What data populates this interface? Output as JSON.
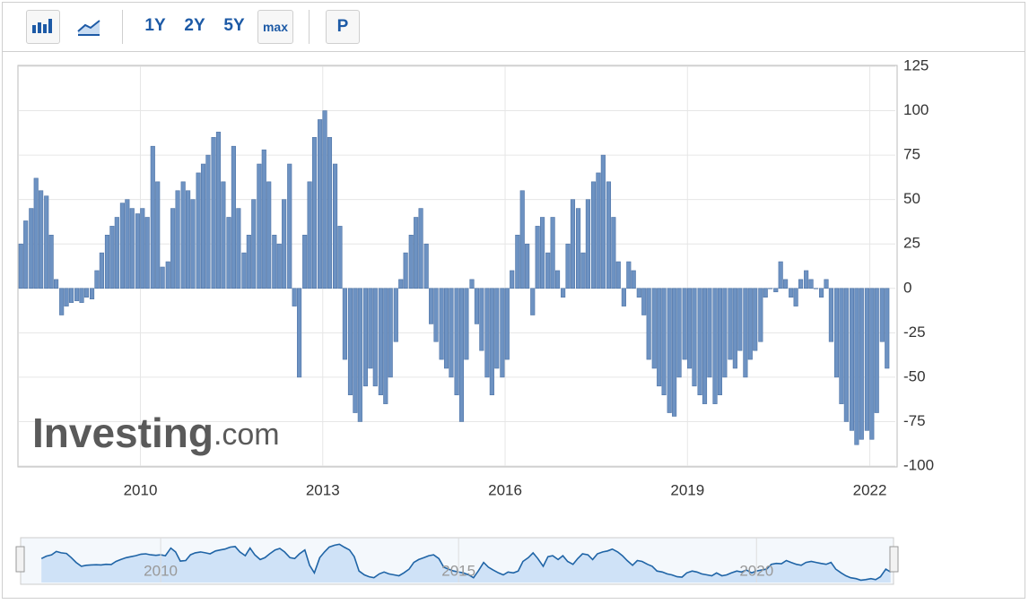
{
  "toolbar": {
    "buttons": [
      "1Y",
      "2Y",
      "5Y",
      "max",
      "P"
    ]
  },
  "watermark": {
    "brand": "Investing",
    "suffix": ".com"
  },
  "chart_data": {
    "type": "bar",
    "color": "#6d92c2",
    "x": [
      2008,
      2008.08,
      2008.17,
      2008.25,
      2008.33,
      2008.42,
      2008.5,
      2008.58,
      2008.67,
      2008.75,
      2008.83,
      2008.92,
      2009,
      2009.08,
      2009.17,
      2009.25,
      2009.33,
      2009.42,
      2009.5,
      2009.58,
      2009.67,
      2009.75,
      2009.83,
      2009.92,
      2010,
      2010.08,
      2010.17,
      2010.25,
      2010.33,
      2010.42,
      2010.5,
      2010.58,
      2010.67,
      2010.75,
      2010.83,
      2010.92,
      2011,
      2011.08,
      2011.17,
      2011.25,
      2011.33,
      2011.42,
      2011.5,
      2011.58,
      2011.67,
      2011.75,
      2011.83,
      2011.92,
      2012,
      2012.08,
      2012.17,
      2012.25,
      2012.33,
      2012.42,
      2012.5,
      2012.58,
      2012.67,
      2012.75,
      2012.83,
      2012.92,
      2013,
      2013.08,
      2013.17,
      2013.25,
      2013.33,
      2013.42,
      2013.5,
      2013.58,
      2013.67,
      2013.75,
      2013.83,
      2013.92,
      2014,
      2014.08,
      2014.17,
      2014.25,
      2014.33,
      2014.42,
      2014.5,
      2014.58,
      2014.67,
      2014.75,
      2014.83,
      2014.92,
      2015,
      2015.08,
      2015.17,
      2015.25,
      2015.33,
      2015.42,
      2015.5,
      2015.58,
      2015.67,
      2015.75,
      2015.83,
      2015.92,
      2016,
      2016.08,
      2016.17,
      2016.25,
      2016.33,
      2016.42,
      2016.5,
      2016.58,
      2016.67,
      2016.75,
      2016.83,
      2016.92,
      2017,
      2017.08,
      2017.17,
      2017.25,
      2017.33,
      2017.42,
      2017.5,
      2017.58,
      2017.67,
      2017.75,
      2017.83,
      2017.92,
      2018,
      2018.08,
      2018.17,
      2018.25,
      2018.33,
      2018.42,
      2018.5,
      2018.58,
      2018.67,
      2018.75,
      2018.83,
      2018.92,
      2019,
      2019.08,
      2019.17,
      2019.25,
      2019.33,
      2019.42,
      2019.5,
      2019.58,
      2019.67,
      2019.75,
      2019.83,
      2019.92,
      2020,
      2020.08,
      2020.17,
      2020.25,
      2020.33,
      2020.42,
      2020.5,
      2020.58,
      2020.67,
      2020.75,
      2020.83,
      2020.92,
      2021,
      2021.08,
      2021.17,
      2021.25,
      2021.33,
      2021.42,
      2021.5,
      2021.58,
      2021.67,
      2021.75,
      2021.83,
      2021.92,
      2022,
      2022.08,
      2022.17,
      2022.25
    ],
    "values": [
      25,
      38,
      45,
      62,
      55,
      52,
      30,
      5,
      -15,
      -10,
      -8,
      -7,
      -8,
      -5,
      -6,
      10,
      20,
      30,
      35,
      40,
      48,
      50,
      45,
      42,
      45,
      40,
      80,
      60,
      12,
      15,
      45,
      55,
      60,
      55,
      50,
      65,
      70,
      75,
      85,
      88,
      60,
      40,
      80,
      45,
      20,
      30,
      50,
      70,
      78,
      60,
      30,
      25,
      50,
      70,
      -10,
      -50,
      30,
      60,
      85,
      95,
      100,
      85,
      70,
      35,
      -40,
      -60,
      -70,
      -75,
      -55,
      -45,
      -55,
      -60,
      -65,
      -50,
      -30,
      5,
      20,
      30,
      40,
      45,
      25,
      -20,
      -30,
      -40,
      -45,
      -50,
      -60,
      -75,
      -40,
      5,
      -20,
      -35,
      -50,
      -60,
      -45,
      -50,
      -40,
      10,
      30,
      55,
      25,
      -15,
      35,
      40,
      20,
      40,
      10,
      -5,
      25,
      50,
      45,
      20,
      50,
      60,
      65,
      75,
      60,
      40,
      15,
      -10,
      15,
      10,
      -5,
      -15,
      -40,
      -45,
      -55,
      -60,
      -70,
      -72,
      -50,
      -40,
      -45,
      -55,
      -60,
      -65,
      -50,
      -65,
      -60,
      -50,
      -40,
      -45,
      -35,
      -50,
      -40,
      -35,
      -30,
      -5,
      0,
      -2,
      15,
      5,
      -5,
      -10,
      5,
      10,
      5,
      0,
      -5,
      5,
      -30,
      -50,
      -65,
      -75,
      -80,
      -88,
      -85,
      -80,
      -85,
      -70,
      -30,
      -45
    ],
    "xlim": [
      2008,
      2022.42
    ],
    "xticks": [
      2010,
      2013,
      2016,
      2019,
      2022
    ],
    "ylim": [
      -100,
      125
    ],
    "yticks": [
      -100,
      -75,
      -50,
      -25,
      0,
      25,
      50,
      75,
      100,
      125
    ],
    "grid": true,
    "navigator": {
      "xlim": [
        2007.65,
        2022.3
      ],
      "xticks": [
        2010,
        2015,
        2020
      ]
    }
  }
}
